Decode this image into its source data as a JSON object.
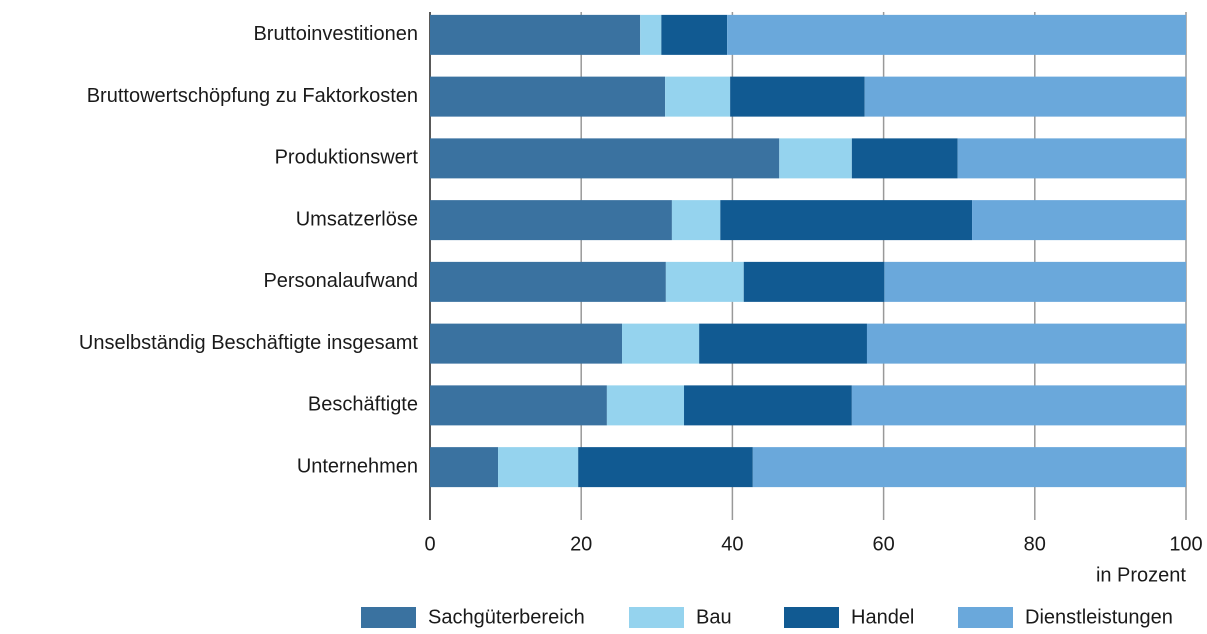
{
  "chart_data": {
    "type": "stacked_barh",
    "categories": [
      "Bruttoinvestitionen",
      "Bruttowertschöpfung zu Faktorkosten",
      "Produktionswert",
      "Umsatzerlöse",
      "Personalaufwand",
      "Unselbständig Beschäftigte insgesamt",
      "Beschäftigte",
      "Unternehmen"
    ],
    "series": [
      {
        "name": "Sachgüterbereich",
        "color": "#3a72a0",
        "values": [
          27.8,
          31.1,
          46.2,
          32.0,
          31.2,
          25.4,
          23.4,
          9.0
        ]
      },
      {
        "name": "Bau",
        "color": "#95d3ee",
        "values": [
          2.8,
          8.6,
          9.6,
          6.4,
          10.3,
          10.2,
          10.2,
          10.6
        ]
      },
      {
        "name": "Handel",
        "color": "#115a92",
        "values": [
          8.7,
          17.8,
          14.0,
          33.3,
          18.6,
          22.2,
          22.2,
          23.1
        ]
      },
      {
        "name": "Dienstleistungen",
        "color": "#6aa8db",
        "values": [
          60.7,
          42.5,
          30.2,
          28.3,
          39.9,
          42.2,
          44.2,
          57.3
        ]
      }
    ],
    "xlabel": "in Prozent",
    "xlim": [
      0,
      100
    ],
    "xticks": [
      0,
      20,
      40,
      60,
      80,
      100
    ],
    "grid": true
  }
}
